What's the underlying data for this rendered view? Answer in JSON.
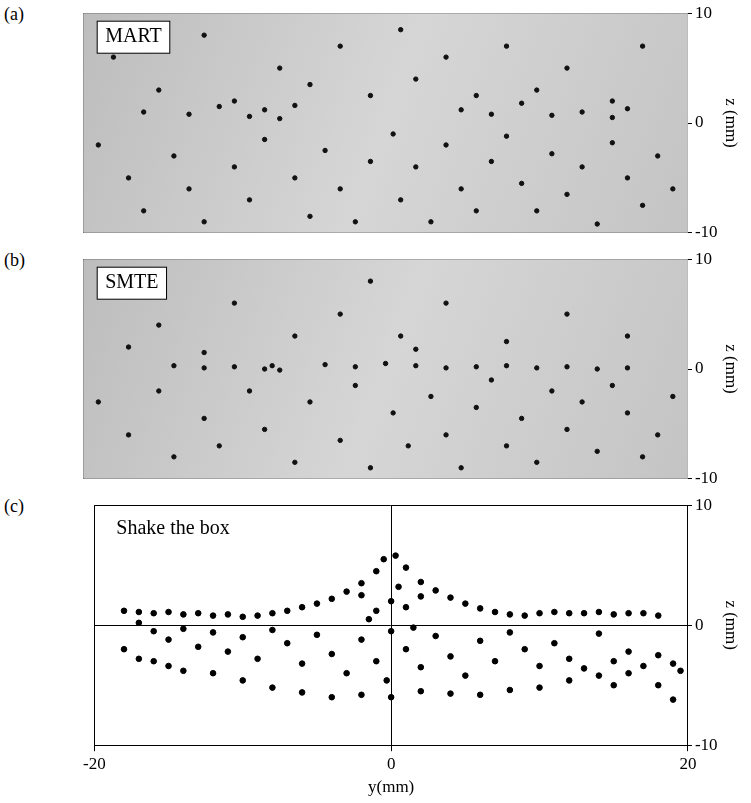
{
  "chart_data": [
    {
      "type": "particle_image",
      "label": "(a)",
      "title": "MART",
      "ylabel": "z (mm)",
      "xlim": [
        -20,
        20
      ],
      "xticks": [
        -20,
        0,
        20
      ],
      "ylim": [
        -10,
        10
      ],
      "yticks": [
        -10,
        0,
        10
      ],
      "grid": true,
      "tick_labels": "y",
      "color": "#111111",
      "marker": "circle",
      "x": [
        -18,
        -15,
        -12,
        -10,
        -7,
        -5,
        -3,
        -1,
        1,
        2,
        4,
        6,
        8,
        10,
        12,
        15,
        17,
        -16,
        -13,
        -11,
        -9,
        -8,
        -7,
        -6,
        5,
        7,
        9,
        11,
        13,
        15,
        16,
        -19,
        -17,
        -16,
        -14,
        -13,
        -12,
        -10,
        -9,
        -8,
        -6,
        -5,
        -4,
        -3,
        -2,
        -1,
        0.5,
        1,
        2,
        3,
        4,
        5,
        6,
        7,
        8,
        9,
        10,
        11,
        12,
        13,
        14,
        15,
        16,
        17,
        18,
        19
      ],
      "values": [
        6,
        3,
        8,
        2,
        5,
        3.5,
        7,
        2.5,
        8.5,
        4,
        6,
        2.5,
        7,
        3,
        5,
        2,
        7,
        1,
        0.8,
        1.5,
        0.6,
        1.2,
        0.4,
        1.6,
        1.2,
        0.8,
        1.8,
        0.7,
        1.0,
        0.5,
        1.3,
        -2,
        -5,
        -8,
        -3,
        -6,
        -9,
        -4,
        -7,
        -1.5,
        -5,
        -8.5,
        -2.5,
        -6,
        -9,
        -3.5,
        -1,
        -7,
        -4,
        -9,
        -2,
        -6,
        -8,
        -3.5,
        -1.2,
        -5.5,
        -8,
        -2.8,
        -6.5,
        -4,
        -9.2,
        -1.8,
        -5,
        -7.5,
        -3,
        -6
      ]
    },
    {
      "type": "particle_image",
      "label": "(b)",
      "title": "SMTE",
      "ylabel": "z (mm)",
      "xlim": [
        -20,
        20
      ],
      "xticks": [
        -20,
        0,
        20
      ],
      "ylim": [
        -10,
        10
      ],
      "yticks": [
        -10,
        0,
        10
      ],
      "grid": true,
      "tick_labels": "y",
      "color": "#111111",
      "marker": "circle",
      "x": [
        -15,
        -10,
        -6,
        -3,
        -1,
        1,
        4,
        8,
        12,
        16,
        -12,
        2,
        -17,
        -14,
        -12,
        -10,
        -8,
        -7.5,
        -7,
        -4,
        -2,
        0,
        2,
        4,
        6,
        8,
        10,
        12,
        14,
        16,
        -19,
        -17,
        -15,
        -14,
        -12,
        -11,
        -9,
        -8,
        -6,
        -5,
        -3,
        -2,
        -1,
        0.5,
        1.5,
        3,
        4,
        5,
        6,
        7,
        8,
        9,
        10,
        11,
        12,
        13,
        14,
        15,
        16,
        17,
        18,
        19
      ],
      "values": [
        4,
        6,
        3,
        5,
        8,
        3,
        6,
        2.5,
        5,
        3,
        1.5,
        1.8,
        2,
        0.3,
        0.1,
        0.2,
        0,
        0.3,
        -0.1,
        0.4,
        0.2,
        0.5,
        0.3,
        0.1,
        0.2,
        0.3,
        0.1,
        0.2,
        0,
        0.1,
        -3,
        -6,
        -2,
        -8,
        -4.5,
        -7,
        -2,
        -5.5,
        -8.5,
        -3,
        -6.5,
        -1.5,
        -9,
        -4,
        -7,
        -2.5,
        -6,
        -9,
        -3.5,
        -1,
        -7,
        -4.5,
        -8.5,
        -2,
        -5.5,
        -3,
        -7.5,
        -1.5,
        -4,
        -8,
        -6,
        -2.5
      ]
    },
    {
      "type": "scatter",
      "label": "(c)",
      "title": "Shake the box",
      "xlabel": "y(mm)",
      "ylabel": "z (mm)",
      "xlim": [
        -20,
        20
      ],
      "xticks": [
        -20,
        0,
        20
      ],
      "ylim": [
        -10,
        10
      ],
      "yticks": [
        -10,
        0,
        10
      ],
      "grid": true,
      "color": "#000000",
      "marker": "circle",
      "x": [
        -18,
        -17,
        -16,
        -15,
        -14,
        -13,
        -12,
        -11,
        -10,
        -9,
        -8,
        -7,
        -6,
        -5,
        -4,
        -3,
        -2,
        -1,
        -0.5,
        0.3,
        1,
        2,
        3,
        4,
        5,
        6,
        7,
        8,
        9,
        10,
        11,
        12,
        13,
        14,
        15,
        16,
        17,
        18,
        -17,
        -16,
        -15,
        -14,
        -13,
        -12,
        -11,
        -10,
        -9,
        -8,
        -7,
        -6,
        -5,
        -4,
        -3,
        -2,
        -1,
        0,
        0,
        -1,
        1,
        0.5,
        -0.3,
        1,
        2,
        3,
        4,
        5,
        6,
        7,
        8,
        9,
        10,
        11,
        12,
        13,
        14,
        15,
        16,
        17,
        18,
        19,
        19.5,
        -18,
        -17,
        -16,
        -15,
        -12,
        -10,
        -8,
        -6,
        -4,
        -2,
        0,
        2,
        4,
        6,
        8,
        10,
        12,
        14,
        16,
        18,
        19,
        15,
        -14,
        -2,
        2,
        -1.5,
        1.5
      ],
      "values": [
        1.2,
        1.1,
        1.0,
        1.1,
        0.9,
        1.0,
        0.8,
        0.9,
        0.7,
        0.8,
        1.0,
        1.2,
        1.5,
        1.8,
        2.2,
        2.8,
        3.5,
        4.5,
        5.5,
        5.8,
        4.8,
        3.6,
        2.9,
        2.3,
        1.8,
        1.4,
        1.1,
        0.9,
        0.8,
        1.0,
        1.1,
        1.0,
        1.0,
        1.1,
        0.9,
        1.0,
        1.0,
        0.8,
        0.2,
        -0.5,
        -1.2,
        -0.3,
        -1.8,
        -0.6,
        -2.2,
        -1.0,
        -2.8,
        -0.4,
        -1.5,
        -3.2,
        -0.8,
        -2.4,
        -4.0,
        -1.2,
        -3.0,
        -0.5,
        2.0,
        1.2,
        1.5,
        3.2,
        -4.6,
        -2.0,
        -3.5,
        -0.9,
        -2.6,
        -4.2,
        -1.3,
        -3.0,
        -0.6,
        -2.0,
        -3.4,
        -1.5,
        -2.8,
        -3.6,
        -0.7,
        -3.0,
        -2.2,
        -3.4,
        -2.5,
        -3.2,
        -3.8,
        -2.0,
        -2.8,
        -3.0,
        -3.4,
        -4.0,
        -4.6,
        -5.2,
        -5.6,
        -6.0,
        -5.8,
        -6.0,
        -5.5,
        -5.7,
        -5.8,
        -5.4,
        -5.2,
        -4.6,
        -4.2,
        -4.0,
        -5.0,
        -6.2,
        -5.0,
        -3.8,
        2.5,
        2.4,
        0.5,
        -0.2
      ]
    }
  ]
}
